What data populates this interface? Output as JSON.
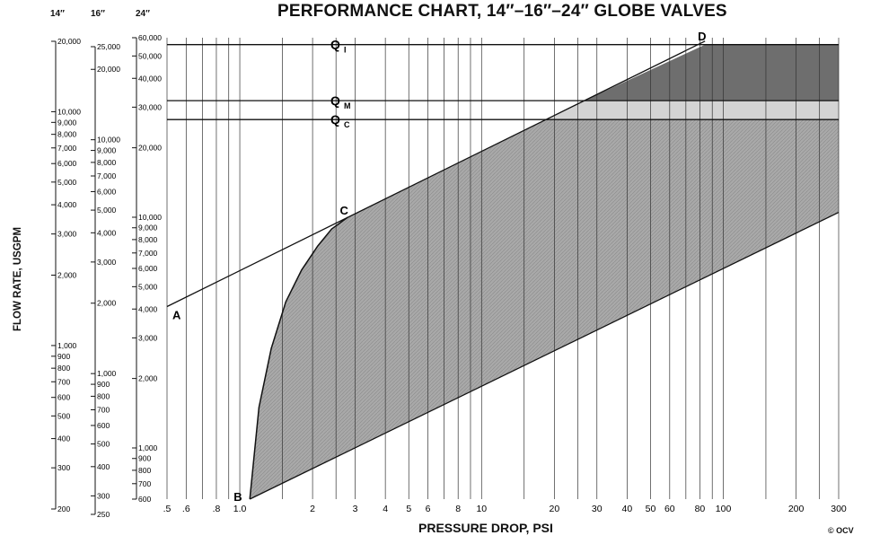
{
  "title": "PERFORMANCE CHART, 14″–16″–24″ GLOBE VALVES",
  "xlabel": "PRESSURE DROP, PSI",
  "ylabel": "FLOW RATE, USGPM",
  "copyright": "© OCV",
  "scale_headers": [
    "14″",
    "16″",
    "24″"
  ],
  "colors": {
    "envelope": "#a9a9a9",
    "low_zone": "#d4d4d4",
    "high_zone": "#6e6e6e",
    "line": "#111111"
  },
  "chart_data": {
    "type": "area",
    "title": "PERFORMANCE CHART, 14″–16″–24″ GLOBE VALVES",
    "xlabel": "PRESSURE DROP, PSI",
    "ylabel": "FLOW RATE, USGPM",
    "x_scale": "log",
    "xlim": [
      0.5,
      300
    ],
    "grid": true,
    "x_ticks": [
      0.5,
      0.6,
      0.8,
      1,
      2,
      3,
      4,
      5,
      6,
      8,
      10,
      20,
      30,
      40,
      50,
      60,
      80,
      100,
      200,
      300
    ],
    "x_tick_labels": [
      ".5",
      ".6",
      ".8",
      "1.0",
      "2",
      "3",
      "4",
      "5",
      "6",
      "8",
      "10",
      "20",
      "30",
      "40",
      "50",
      "60",
      "80",
      "100",
      "200",
      "300"
    ],
    "y_scales": [
      {
        "name": "14″",
        "ylim": [
          200,
          20000
        ],
        "ticks": [
          20000,
          10000,
          9000,
          8000,
          7000,
          6000,
          5000,
          4000,
          3000,
          2000,
          1000,
          900,
          800,
          700,
          600,
          500,
          400,
          300,
          200
        ],
        "labels": [
          "20,000",
          "10,000",
          "9,000",
          "8,000",
          "7,000",
          "6,000",
          "5,000",
          "4,000",
          "3,000",
          "2,000",
          "1,000",
          "900",
          "800",
          "700",
          "600",
          "500",
          "400",
          "300",
          "200"
        ]
      },
      {
        "name": "16″",
        "ylim": [
          250,
          25000
        ],
        "ticks": [
          25000,
          20000,
          10000,
          9000,
          8000,
          7000,
          6000,
          5000,
          4000,
          3000,
          2000,
          1000,
          900,
          800,
          700,
          600,
          500,
          400,
          300,
          250
        ],
        "labels": [
          "25,000",
          "20,000",
          "10,000",
          "9,000",
          "8,000",
          "7,000",
          "6,000",
          "5,000",
          "4,000",
          "3,000",
          "2,000",
          "1,000",
          "900",
          "800",
          "700",
          "600",
          "500",
          "400",
          "300",
          "250"
        ]
      },
      {
        "name": "24″",
        "ylim": [
          600,
          60000
        ],
        "ticks": [
          60000,
          50000,
          40000,
          30000,
          20000,
          10000,
          9000,
          8000,
          7000,
          6000,
          5000,
          4000,
          3000,
          2000,
          1000,
          900,
          800,
          700,
          600
        ],
        "labels": [
          "60,000",
          "50,000",
          "40,000",
          "30,000",
          "20,000",
          "10,000",
          "9,000",
          "8,000",
          "7,000",
          "6,000",
          "5,000",
          "4,000",
          "3,000",
          "2,000",
          "1,000",
          "900",
          "800",
          "700",
          "600"
        ]
      }
    ],
    "reference_lines": [
      {
        "label": "Q",
        "subscript": "I",
        "y": 56000
      },
      {
        "label": "Q",
        "subscript": "M",
        "y": 32000
      },
      {
        "label": "Q",
        "subscript": "C",
        "y": 26500
      }
    ],
    "points": [
      {
        "label": "A",
        "x": 0.5,
        "y": 4100
      },
      {
        "label": "B",
        "x": 1.1,
        "y": 600
      },
      {
        "label": "C",
        "x": 2.8,
        "y": 10000
      },
      {
        "label": "D",
        "x": 84,
        "y": 58000
      }
    ],
    "upper_line": {
      "x": [
        0.5,
        84
      ],
      "y": [
        4100,
        58000
      ]
    },
    "lower_line": {
      "x": [
        1.1,
        300
      ],
      "y": [
        600,
        10500
      ]
    },
    "curve_B_to_C": {
      "x": [
        1.1,
        1.2,
        1.35,
        1.55,
        1.8,
        2.1,
        2.4,
        2.8
      ],
      "y": [
        600,
        1500,
        2700,
        4300,
        5900,
        7500,
        8900,
        10000
      ]
    }
  }
}
